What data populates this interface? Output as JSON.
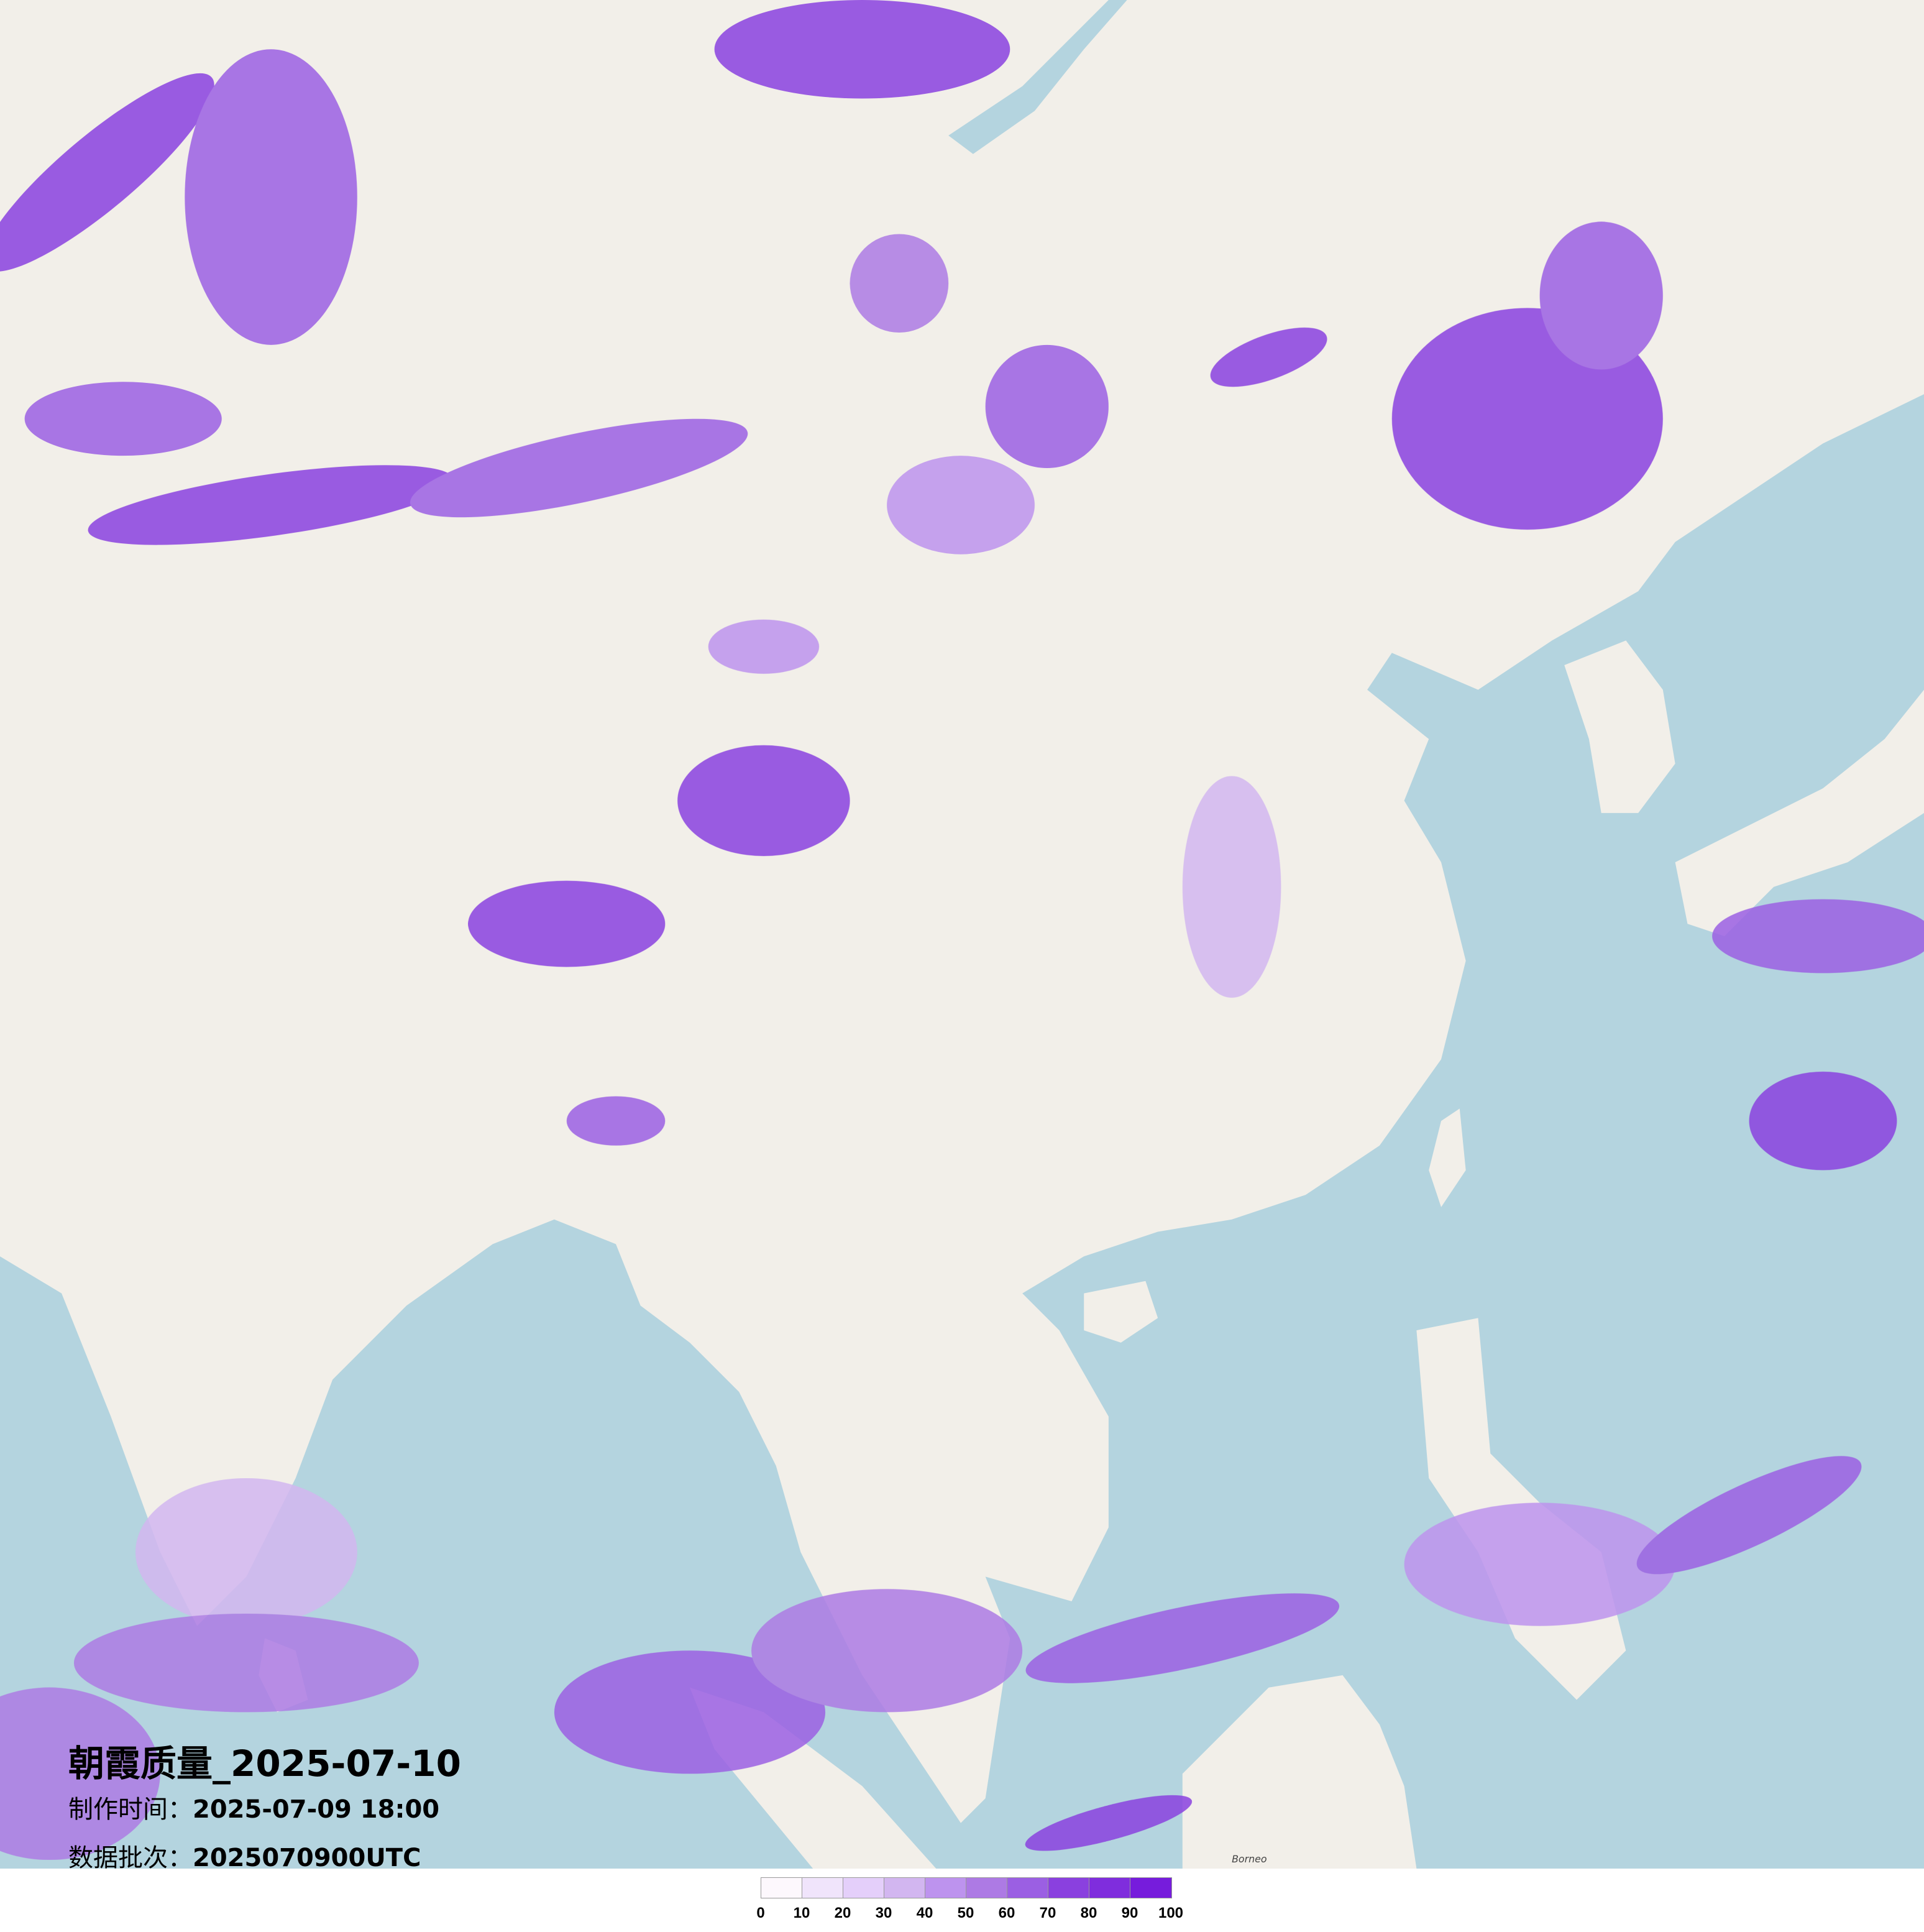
{
  "title": "朝霞质量_2025-07-10",
  "production_time": {
    "label": "制作时间：",
    "value": "2025-07-09 18:00"
  },
  "data_batch": {
    "label": "数据批次：",
    "value": "2025070900UTC"
  },
  "legend": {
    "ticks": [
      "0",
      "10",
      "20",
      "30",
      "40",
      "50",
      "60",
      "70",
      "80",
      "90",
      "100"
    ],
    "colors": [
      "#fdf8fd",
      "#f0e4fb",
      "#e4cffa",
      "#d2b6f0",
      "#bd93ee",
      "#ad7ae4",
      "#9b5fe3",
      "#8a40df",
      "#7f2ddd",
      "#761cdc"
    ]
  },
  "map": {
    "land_color": "#f2efe9",
    "sea_color": "#b4d4df",
    "label": "Borneo"
  }
}
